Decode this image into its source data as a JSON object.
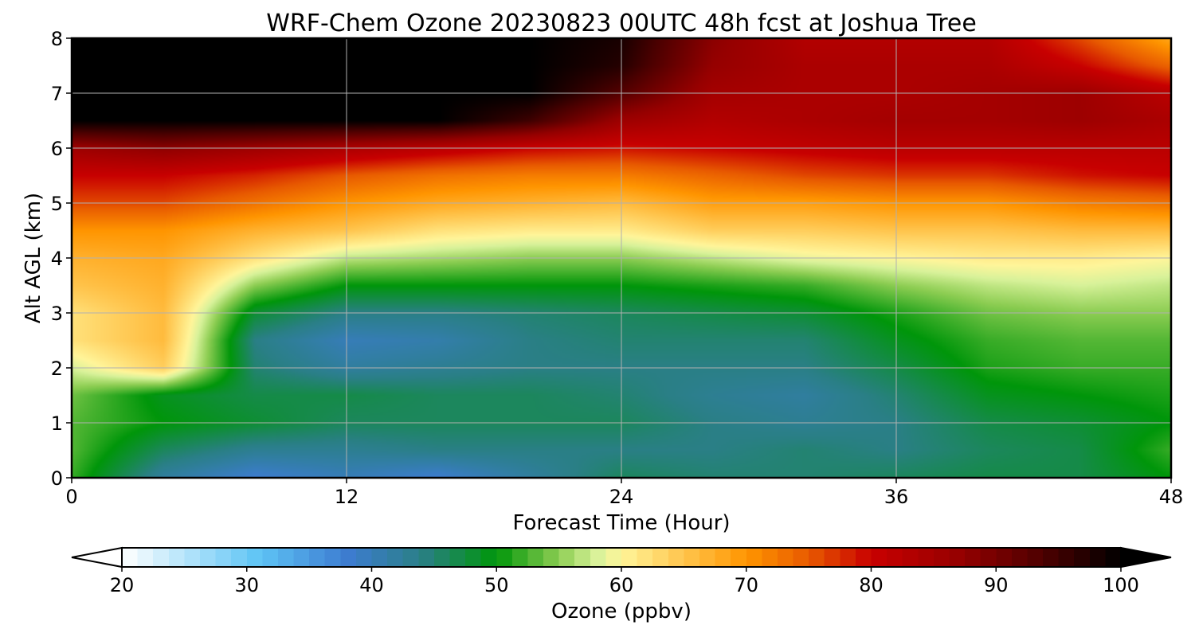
{
  "chart_data": {
    "type": "heatmap",
    "title": "WRF-Chem Ozone  20230823 00UTC 48h fcst at Joshua Tree",
    "xlabel": "Forecast Time (Hour)",
    "ylabel": "Alt AGL (km)",
    "xlim": [
      0,
      48
    ],
    "ylim": [
      0,
      8
    ],
    "xticks": [
      "0",
      "12",
      "24",
      "36",
      "48"
    ],
    "yticks": [
      "0",
      "1",
      "2",
      "3",
      "4",
      "5",
      "6",
      "7",
      "8"
    ],
    "grid": true,
    "colorbar": {
      "label": "Ozone  (ppbv)",
      "min": 20,
      "max": 100,
      "ticks": [
        "20",
        "30",
        "40",
        "50",
        "60",
        "70",
        "80",
        "90",
        "100"
      ],
      "extend": "both",
      "colors": [
        {
          "v": 20,
          "c": "#ffffff"
        },
        {
          "v": 31,
          "c": "#5ec4f5"
        },
        {
          "v": 38,
          "c": "#3d7cd1"
        },
        {
          "v": 44,
          "c": "#2a7f86"
        },
        {
          "v": 50,
          "c": "#00960a"
        },
        {
          "v": 55,
          "c": "#8ccd52"
        },
        {
          "v": 58,
          "c": "#d8f29a"
        },
        {
          "v": 60,
          "c": "#fff59a"
        },
        {
          "v": 64,
          "c": "#ffce5c"
        },
        {
          "v": 70,
          "c": "#ff9500"
        },
        {
          "v": 75,
          "c": "#e85a00"
        },
        {
          "v": 80,
          "c": "#c80000"
        },
        {
          "v": 87,
          "c": "#960000"
        },
        {
          "v": 94,
          "c": "#4a0000"
        },
        {
          "v": 100,
          "c": "#000000"
        }
      ]
    },
    "z_units": "ppbv",
    "x": [
      0,
      4,
      8,
      12,
      16,
      20,
      24,
      28,
      32,
      36,
      40,
      44,
      48
    ],
    "y": [
      0,
      0.5,
      1,
      1.5,
      2,
      2.5,
      3,
      3.5,
      4,
      4.5,
      5,
      5.5,
      6,
      6.5,
      7,
      7.5,
      8
    ],
    "z": [
      [
        52,
        42,
        38,
        40,
        38,
        42,
        46,
        45,
        45,
        46,
        47,
        47,
        50
      ],
      [
        53,
        46,
        43,
        43,
        44,
        44,
        44,
        44,
        45,
        44,
        46,
        47,
        52
      ],
      [
        53,
        50,
        48,
        46,
        46,
        46,
        46,
        44,
        43,
        44,
        47,
        48,
        50
      ],
      [
        54,
        49,
        47,
        47,
        46,
        46,
        45,
        43,
        42,
        45,
        49,
        50,
        51
      ],
      [
        58,
        64,
        45,
        42,
        43,
        44,
        44,
        44,
        44,
        47,
        51,
        52,
        52
      ],
      [
        62,
        66,
        44,
        40,
        41,
        44,
        45,
        45,
        45,
        49,
        52,
        53,
        53
      ],
      [
        62,
        66,
        48,
        44,
        44,
        45,
        46,
        47,
        48,
        51,
        54,
        55,
        55
      ],
      [
        65,
        67,
        55,
        50,
        50,
        50,
        50,
        51,
        52,
        55,
        57,
        58,
        57
      ],
      [
        67,
        68,
        62,
        57,
        56,
        55,
        55,
        57,
        59,
        60,
        61,
        61,
        60
      ],
      [
        70,
        70,
        67,
        65,
        62,
        61,
        61,
        64,
        64,
        65,
        65,
        66,
        66
      ],
      [
        76,
        76,
        73,
        70,
        68,
        67,
        66,
        69,
        69,
        70,
        70,
        72,
        73
      ],
      [
        80,
        80,
        78,
        75,
        73,
        72,
        72,
        74,
        76,
        77,
        77,
        79,
        80
      ],
      [
        86,
        88,
        86,
        84,
        82,
        80,
        79,
        80,
        81,
        82,
        82,
        82,
        82
      ],
      [
        100,
        100,
        100,
        100,
        100,
        95,
        86,
        83,
        84,
        85,
        85,
        86,
        84
      ],
      [
        100,
        100,
        100,
        100,
        100,
        100,
        93,
        85,
        84,
        84,
        85,
        86,
        82
      ],
      [
        100,
        100,
        100,
        100,
        100,
        100,
        97,
        87,
        84,
        84,
        84,
        80,
        74
      ],
      [
        100,
        100,
        100,
        100,
        100,
        100,
        98,
        88,
        83,
        83,
        83,
        76,
        68
      ]
    ]
  }
}
